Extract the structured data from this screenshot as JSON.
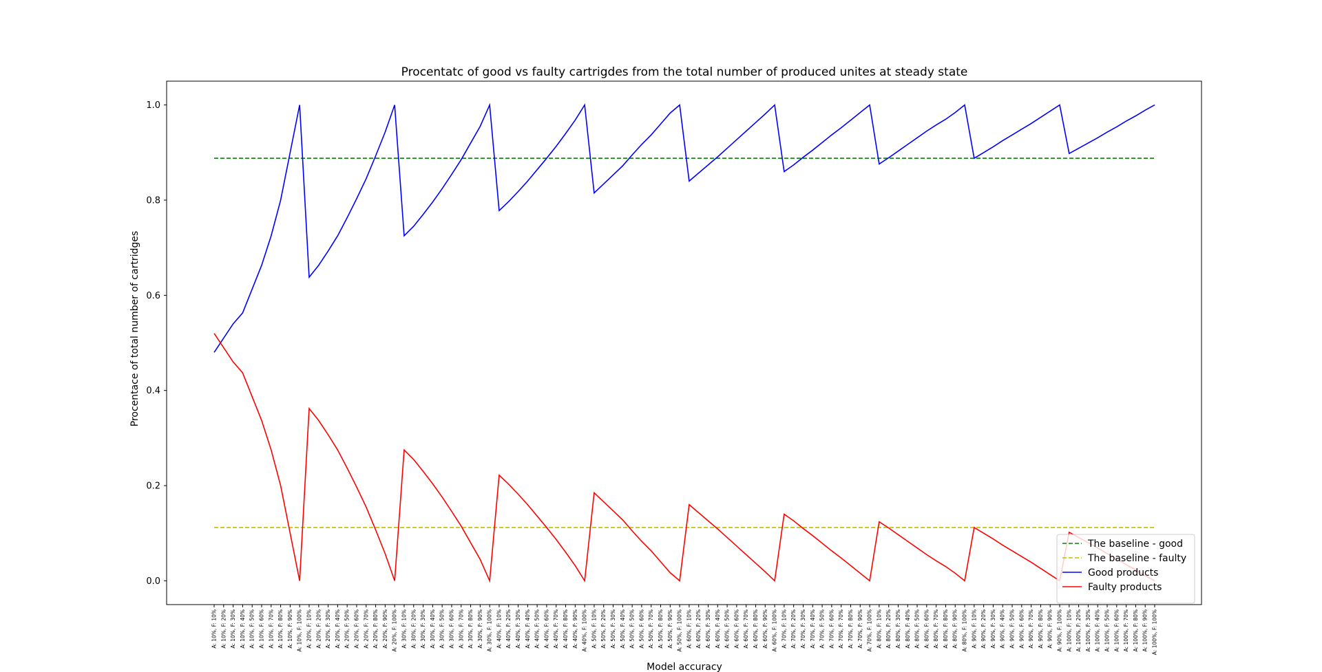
{
  "chart_data": {
    "type": "line",
    "title": "Procentatc of good vs faulty cartrigdes from the total number of produced unites at steady state",
    "xlabel": "Model accuracy",
    "ylabel": "Procentace of total number of cartridges",
    "ylim": [
      -0.05,
      1.05
    ],
    "yticks": [
      0.0,
      0.2,
      0.4,
      0.6,
      0.8,
      1.0
    ],
    "ytick_labels": [
      "0.0",
      "0.2",
      "0.4",
      "0.6",
      "0.8",
      "1.0"
    ],
    "grid": false,
    "legend_position": "lower-right",
    "categories": [
      "A: 10%, F: 10%",
      "A: 10%, F: 20%",
      "A: 10%, F: 30%",
      "A: 10%, F: 40%",
      "A: 10%, F: 50%",
      "A: 10%, F: 60%",
      "A: 10%, F: 70%",
      "A: 10%, F: 80%",
      "A: 10%, F: 90%",
      "A: 10%, F: 100%",
      "A: 20%, F: 10%",
      "A: 20%, F: 20%",
      "A: 20%, F: 30%",
      "A: 20%, F: 40%",
      "A: 20%, F: 50%",
      "A: 20%, F: 60%",
      "A: 20%, F: 70%",
      "A: 20%, F: 80%",
      "A: 20%, F: 90%",
      "A: 20%, F: 100%",
      "A: 30%, F: 10%",
      "A: 30%, F: 20%",
      "A: 30%, F: 30%",
      "A: 30%, F: 40%",
      "A: 30%, F: 50%",
      "A: 30%, F: 60%",
      "A: 30%, F: 70%",
      "A: 30%, F: 80%",
      "A: 30%, F: 90%",
      "A: 30%, F: 100%",
      "A: 40%, F: 10%",
      "A: 40%, F: 20%",
      "A: 40%, F: 30%",
      "A: 40%, F: 40%",
      "A: 40%, F: 50%",
      "A: 40%, F: 60%",
      "A: 40%, F: 70%",
      "A: 40%, F: 80%",
      "A: 40%, F: 90%",
      "A: 40%, F: 100%",
      "A: 50%, F: 10%",
      "A: 50%, F: 20%",
      "A: 50%, F: 30%",
      "A: 50%, F: 40%",
      "A: 50%, F: 50%",
      "A: 50%, F: 60%",
      "A: 50%, F: 70%",
      "A: 50%, F: 80%",
      "A: 50%, F: 90%",
      "A: 50%, F: 100%",
      "A: 60%, F: 10%",
      "A: 60%, F: 20%",
      "A: 60%, F: 30%",
      "A: 60%, F: 40%",
      "A: 60%, F: 50%",
      "A: 60%, F: 60%",
      "A: 60%, F: 70%",
      "A: 60%, F: 80%",
      "A: 60%, F: 90%",
      "A: 60%, F: 100%",
      "A: 70%, F: 10%",
      "A: 70%, F: 20%",
      "A: 70%, F: 30%",
      "A: 70%, F: 40%",
      "A: 70%, F: 50%",
      "A: 70%, F: 60%",
      "A: 70%, F: 70%",
      "A: 70%, F: 80%",
      "A: 70%, F: 90%",
      "A: 70%, F: 100%",
      "A: 80%, F: 10%",
      "A: 80%, F: 20%",
      "A: 80%, F: 30%",
      "A: 80%, F: 40%",
      "A: 80%, F: 50%",
      "A: 80%, F: 60%",
      "A: 80%, F: 70%",
      "A: 80%, F: 80%",
      "A: 80%, F: 90%",
      "A: 80%, F: 100%",
      "A: 90%, F: 10%",
      "A: 90%, F: 20%",
      "A: 90%, F: 30%",
      "A: 90%, F: 40%",
      "A: 90%, F: 50%",
      "A: 90%, F: 60%",
      "A: 90%, F: 70%",
      "A: 90%, F: 80%",
      "A: 90%, F: 90%",
      "A: 90%, F: 100%",
      "A: 100%, F: 10%",
      "A: 100%, F: 20%",
      "A: 100%, F: 30%",
      "A: 100%, F: 40%",
      "A: 100%, F: 50%",
      "A: 100%, F: 60%",
      "A: 100%, F: 70%",
      "A: 100%, F: 80%",
      "A: 100%, F: 90%",
      "A: 100%, F: 100%"
    ],
    "series": [
      {
        "name": "The baseline - good",
        "color": "#008000",
        "style": "dashed",
        "values": [
          0.888,
          0.888,
          0.888,
          0.888,
          0.888,
          0.888,
          0.888,
          0.888,
          0.888,
          0.888,
          0.888,
          0.888,
          0.888,
          0.888,
          0.888,
          0.888,
          0.888,
          0.888,
          0.888,
          0.888,
          0.888,
          0.888,
          0.888,
          0.888,
          0.888,
          0.888,
          0.888,
          0.888,
          0.888,
          0.888,
          0.888,
          0.888,
          0.888,
          0.888,
          0.888,
          0.888,
          0.888,
          0.888,
          0.888,
          0.888,
          0.888,
          0.888,
          0.888,
          0.888,
          0.888,
          0.888,
          0.888,
          0.888,
          0.888,
          0.888,
          0.888,
          0.888,
          0.888,
          0.888,
          0.888,
          0.888,
          0.888,
          0.888,
          0.888,
          0.888,
          0.888,
          0.888,
          0.888,
          0.888,
          0.888,
          0.888,
          0.888,
          0.888,
          0.888,
          0.888,
          0.888,
          0.888,
          0.888,
          0.888,
          0.888,
          0.888,
          0.888,
          0.888,
          0.888,
          0.888,
          0.888,
          0.888,
          0.888,
          0.888,
          0.888,
          0.888,
          0.888,
          0.888,
          0.888,
          0.888,
          0.888,
          0.888,
          0.888,
          0.888,
          0.888,
          0.888,
          0.888,
          0.888,
          0.888,
          0.888
        ]
      },
      {
        "name": "The baseline - faulty",
        "color": "#bfbf00",
        "style": "dashed",
        "values": [
          0.112,
          0.112,
          0.112,
          0.112,
          0.112,
          0.112,
          0.112,
          0.112,
          0.112,
          0.112,
          0.112,
          0.112,
          0.112,
          0.112,
          0.112,
          0.112,
          0.112,
          0.112,
          0.112,
          0.112,
          0.112,
          0.112,
          0.112,
          0.112,
          0.112,
          0.112,
          0.112,
          0.112,
          0.112,
          0.112,
          0.112,
          0.112,
          0.112,
          0.112,
          0.112,
          0.112,
          0.112,
          0.112,
          0.112,
          0.112,
          0.112,
          0.112,
          0.112,
          0.112,
          0.112,
          0.112,
          0.112,
          0.112,
          0.112,
          0.112,
          0.112,
          0.112,
          0.112,
          0.112,
          0.112,
          0.112,
          0.112,
          0.112,
          0.112,
          0.112,
          0.112,
          0.112,
          0.112,
          0.112,
          0.112,
          0.112,
          0.112,
          0.112,
          0.112,
          0.112,
          0.112,
          0.112,
          0.112,
          0.112,
          0.112,
          0.112,
          0.112,
          0.112,
          0.112,
          0.112,
          0.112,
          0.112,
          0.112,
          0.112,
          0.112,
          0.112,
          0.112,
          0.112,
          0.112,
          0.112,
          0.112,
          0.112,
          0.112,
          0.112,
          0.112,
          0.112,
          0.112,
          0.112,
          0.112,
          0.112
        ]
      },
      {
        "name": "Good products",
        "color": "#0000ff",
        "style": "solid",
        "values": [
          0.48,
          0.51,
          0.54,
          0.563,
          0.613,
          0.663,
          0.725,
          0.8,
          0.9,
          1.0,
          0.638,
          0.663,
          0.693,
          0.725,
          0.763,
          0.803,
          0.845,
          0.893,
          0.943,
          1.0,
          0.725,
          0.745,
          0.77,
          0.796,
          0.824,
          0.854,
          0.885,
          0.92,
          0.955,
          1.0,
          0.778,
          0.797,
          0.818,
          0.84,
          0.864,
          0.888,
          0.913,
          0.94,
          0.968,
          1.0,
          0.815,
          0.834,
          0.853,
          0.872,
          0.895,
          0.917,
          0.937,
          0.96,
          0.983,
          1.0,
          0.84,
          0.857,
          0.874,
          0.891,
          0.909,
          0.927,
          0.945,
          0.963,
          0.981,
          1.0,
          0.86,
          0.874,
          0.89,
          0.905,
          0.921,
          0.937,
          0.952,
          0.968,
          0.984,
          1.0,
          0.876,
          0.889,
          0.903,
          0.917,
          0.931,
          0.945,
          0.958,
          0.97,
          0.984,
          1.0,
          0.888,
          0.9,
          0.912,
          0.925,
          0.937,
          0.949,
          0.961,
          0.974,
          0.987,
          1.0,
          0.898,
          0.909,
          0.92,
          0.931,
          0.943,
          0.954,
          0.966,
          0.977,
          0.989,
          1.0
        ]
      },
      {
        "name": "Faulty products",
        "color": "#ff0000",
        "style": "solid",
        "values": [
          0.52,
          0.49,
          0.46,
          0.437,
          0.387,
          0.337,
          0.275,
          0.2,
          0.1,
          0.0,
          0.362,
          0.337,
          0.307,
          0.275,
          0.237,
          0.197,
          0.155,
          0.107,
          0.057,
          0.0,
          0.275,
          0.255,
          0.23,
          0.204,
          0.176,
          0.146,
          0.115,
          0.08,
          0.045,
          0.0,
          0.222,
          0.203,
          0.182,
          0.16,
          0.136,
          0.112,
          0.087,
          0.06,
          0.032,
          0.0,
          0.185,
          0.166,
          0.147,
          0.128,
          0.105,
          0.083,
          0.063,
          0.04,
          0.017,
          0.0,
          0.16,
          0.143,
          0.126,
          0.109,
          0.091,
          0.073,
          0.055,
          0.037,
          0.019,
          0.0,
          0.14,
          0.126,
          0.11,
          0.095,
          0.079,
          0.063,
          0.048,
          0.032,
          0.016,
          0.0,
          0.124,
          0.111,
          0.097,
          0.083,
          0.069,
          0.055,
          0.042,
          0.03,
          0.016,
          0.0,
          0.112,
          0.1,
          0.088,
          0.075,
          0.063,
          0.051,
          0.039,
          0.026,
          0.013,
          0.0,
          0.102,
          0.091,
          0.08,
          0.069,
          0.057,
          0.046,
          0.034,
          0.023,
          0.011,
          0.0
        ]
      }
    ]
  }
}
